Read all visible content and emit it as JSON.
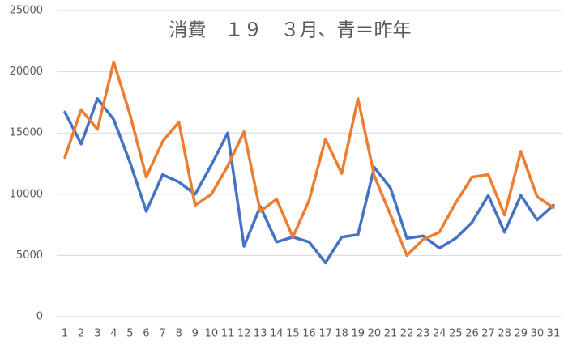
{
  "chart_data": {
    "type": "line",
    "title": "消費　１９　３月、青＝昨年",
    "categories": [
      "1",
      "2",
      "3",
      "4",
      "5",
      "6",
      "7",
      "8",
      "9",
      "10",
      "11",
      "12",
      "13",
      "14",
      "15",
      "16",
      "17",
      "18",
      "19",
      "20",
      "21",
      "22",
      "23",
      "24",
      "25",
      "26",
      "27",
      "28",
      "29",
      "30",
      "31"
    ],
    "series": [
      {
        "color": "#4472c4",
        "values": [
          16700,
          14100,
          17800,
          16100,
          12600,
          8600,
          11600,
          11000,
          10000,
          12400,
          15000,
          5750,
          9000,
          6100,
          6500,
          6100,
          4400,
          6500,
          6700,
          12200,
          10500,
          6400,
          6600,
          5600,
          6400,
          7700,
          9900,
          6900,
          9900,
          7900,
          9100
        ]
      },
      {
        "color": "#ed7d31",
        "values": [
          13000,
          16900,
          15300,
          20800,
          16500,
          11400,
          14300,
          15900,
          9100,
          10000,
          12300,
          15100,
          8600,
          9600,
          6500,
          9500,
          14500,
          11700,
          17800,
          11500,
          8300,
          5000,
          6300,
          6900,
          9300,
          11400,
          11600,
          8300,
          13500,
          9800,
          8900
        ]
      }
    ],
    "ylim": [
      0,
      25000
    ],
    "yticks": [
      0,
      5000,
      10000,
      15000,
      20000,
      25000
    ],
    "grid": true
  }
}
